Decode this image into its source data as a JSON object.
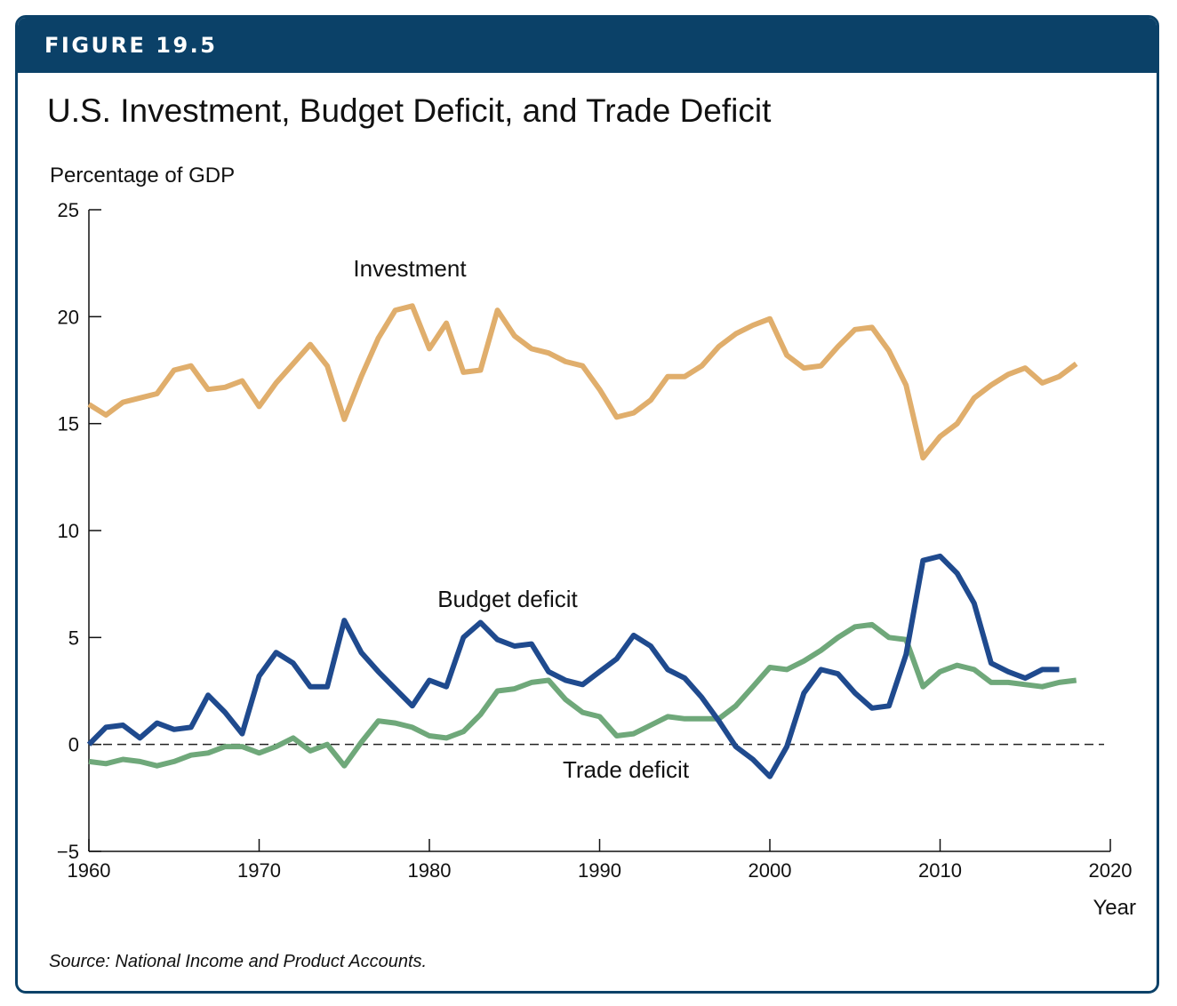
{
  "header": {
    "figure_label": "FIGURE 19.5"
  },
  "title": "U.S. Investment, Budget Deficit, and Trade Deficit",
  "source_prefix": "Source",
  "source_text": ": National Income and Product Accounts.",
  "colors": {
    "banner": "#0b4168",
    "investment": "#e0ae6c",
    "budget_deficit": "#1f4a8e",
    "trade_deficit": "#6fa87a",
    "axis": "#111111"
  },
  "chart_data": {
    "type": "line",
    "title": "U.S. Investment, Budget Deficit, and Trade Deficit",
    "ylabel": "Percentage of GDP",
    "xlabel": "Year",
    "xlim": [
      1960,
      2020
    ],
    "ylim": [
      -5,
      25
    ],
    "xticks": [
      1960,
      1970,
      1980,
      1990,
      2000,
      2010,
      2020
    ],
    "yticks": [
      -5,
      0,
      5,
      10,
      15,
      20,
      25
    ],
    "ytick_labels": [
      "−5",
      "0",
      "5",
      "10",
      "15",
      "20",
      "25"
    ],
    "grid": false,
    "reference_line": {
      "y": 0,
      "style": "dashed"
    },
    "series": [
      {
        "name": "Investment",
        "label_position": "above-line",
        "x": [
          1960,
          1961,
          1962,
          1963,
          1964,
          1965,
          1966,
          1967,
          1968,
          1969,
          1970,
          1971,
          1972,
          1973,
          1974,
          1975,
          1976,
          1977,
          1978,
          1979,
          1980,
          1981,
          1982,
          1983,
          1984,
          1985,
          1986,
          1987,
          1988,
          1989,
          1990,
          1991,
          1992,
          1993,
          1994,
          1995,
          1996,
          1997,
          1998,
          1999,
          2000,
          2001,
          2002,
          2003,
          2004,
          2005,
          2006,
          2007,
          2008,
          2009,
          2010,
          2011,
          2012,
          2013,
          2014,
          2015,
          2016,
          2017,
          2018
        ],
        "values": [
          15.9,
          15.4,
          16.0,
          16.2,
          16.4,
          17.5,
          17.7,
          16.6,
          16.7,
          17.0,
          15.8,
          16.9,
          17.8,
          18.7,
          17.7,
          15.2,
          17.2,
          19.0,
          20.3,
          20.5,
          18.5,
          19.7,
          17.4,
          17.5,
          20.3,
          19.1,
          18.5,
          18.3,
          17.9,
          17.7,
          16.6,
          15.3,
          15.5,
          16.1,
          17.2,
          17.2,
          17.7,
          18.6,
          19.2,
          19.6,
          19.9,
          18.2,
          17.6,
          17.7,
          18.6,
          19.4,
          19.5,
          18.4,
          16.8,
          13.4,
          14.4,
          15.0,
          16.2,
          16.8,
          17.3,
          17.6,
          16.9,
          17.2,
          17.8
        ]
      },
      {
        "name": "Budget deficit",
        "label_position": "above-line",
        "x": [
          1960,
          1961,
          1962,
          1963,
          1964,
          1965,
          1966,
          1967,
          1968,
          1969,
          1970,
          1971,
          1972,
          1973,
          1974,
          1975,
          1976,
          1977,
          1978,
          1979,
          1980,
          1981,
          1982,
          1983,
          1984,
          1985,
          1986,
          1987,
          1988,
          1989,
          1990,
          1991,
          1992,
          1993,
          1994,
          1995,
          1996,
          1997,
          1998,
          1999,
          2000,
          2001,
          2002,
          2003,
          2004,
          2005,
          2006,
          2007,
          2008,
          2009,
          2010,
          2011,
          2012,
          2013,
          2014,
          2015,
          2016,
          2017
        ],
        "values": [
          0.0,
          0.8,
          0.9,
          0.3,
          1.0,
          0.7,
          0.8,
          2.3,
          1.5,
          0.5,
          3.2,
          4.3,
          3.8,
          2.7,
          2.7,
          5.8,
          4.3,
          3.4,
          2.6,
          1.8,
          3.0,
          2.7,
          5.0,
          5.7,
          4.9,
          4.6,
          4.7,
          3.4,
          3.0,
          2.8,
          3.4,
          4.0,
          5.1,
          4.6,
          3.5,
          3.1,
          2.2,
          1.1,
          -0.1,
          -0.7,
          -1.5,
          -0.1,
          2.4,
          3.5,
          3.3,
          2.4,
          1.7,
          1.8,
          4.2,
          8.6,
          8.8,
          8.0,
          6.6,
          3.8,
          3.4,
          3.1,
          3.5,
          3.5
        ]
      },
      {
        "name": "Trade deficit",
        "label_position": "below-line",
        "x": [
          1960,
          1961,
          1962,
          1963,
          1964,
          1965,
          1966,
          1967,
          1968,
          1969,
          1970,
          1971,
          1972,
          1973,
          1974,
          1975,
          1976,
          1977,
          1978,
          1979,
          1980,
          1981,
          1982,
          1983,
          1984,
          1985,
          1986,
          1987,
          1988,
          1989,
          1990,
          1991,
          1992,
          1993,
          1994,
          1995,
          1996,
          1997,
          1998,
          1999,
          2000,
          2001,
          2002,
          2003,
          2004,
          2005,
          2006,
          2007,
          2008,
          2009,
          2010,
          2011,
          2012,
          2013,
          2014,
          2015,
          2016,
          2017,
          2018
        ],
        "values": [
          -0.8,
          -0.9,
          -0.7,
          -0.8,
          -1.0,
          -0.8,
          -0.5,
          -0.4,
          -0.1,
          -0.1,
          -0.4,
          -0.1,
          0.3,
          -0.3,
          0.0,
          -1.0,
          0.1,
          1.1,
          1.0,
          0.8,
          0.4,
          0.3,
          0.6,
          1.4,
          2.5,
          2.6,
          2.9,
          3.0,
          2.1,
          1.5,
          1.3,
          0.4,
          0.5,
          0.9,
          1.3,
          1.2,
          1.2,
          1.2,
          1.8,
          2.7,
          3.6,
          3.5,
          3.9,
          4.4,
          5.0,
          5.5,
          5.6,
          5.0,
          4.9,
          2.7,
          3.4,
          3.7,
          3.5,
          2.9,
          2.9,
          2.8,
          2.7,
          2.9,
          3.0
        ]
      }
    ]
  }
}
